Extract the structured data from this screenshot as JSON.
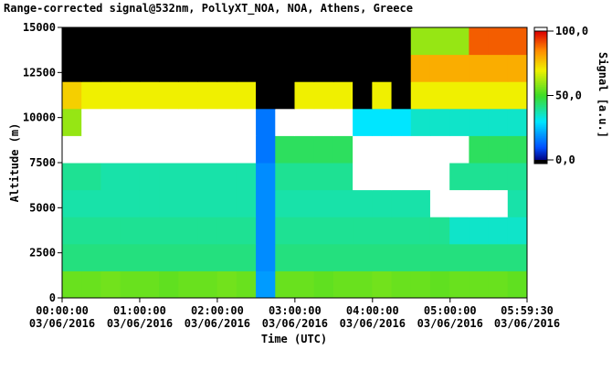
{
  "chart_data": {
    "type": "heatmap",
    "title": "Range-corrected signal@532nm, PollyXT_NOA, NOA, Athens, Greece",
    "x_label": "Time (UTC)",
    "y_label": "Altitude (m)",
    "colorbar_label": "Signal [a.u.]",
    "xlim": [
      0,
      5.99167
    ],
    "ylim": [
      0,
      15000
    ],
    "xticks": [
      {
        "value": 0,
        "label": "00:00:00 03/06/2016"
      },
      {
        "value": 1,
        "label": "01:00:00 03/06/2016"
      },
      {
        "value": 2,
        "label": "02:00:00 03/06/2016"
      },
      {
        "value": 3,
        "label": "03:00:00 03/06/2016"
      },
      {
        "value": 4,
        "label": "04:00:00 03/06/2016"
      },
      {
        "value": 5,
        "label": "05:00:00 03/06/2016"
      },
      {
        "value": 5.99167,
        "label": "05:59:30 03/06/2016"
      }
    ],
    "yticks": [
      0,
      2500,
      5000,
      7500,
      10000,
      12500,
      15000
    ],
    "clim": [
      0,
      100
    ],
    "cticks": [
      {
        "value": 0,
        "label": "0,0"
      },
      {
        "value": 50,
        "label": "50,0"
      },
      {
        "value": 100,
        "label": "100,0"
      }
    ],
    "z": [
      [
        55,
        55,
        56,
        55,
        55,
        54,
        55,
        55,
        56,
        55,
        20,
        55,
        55,
        54,
        55,
        55,
        56,
        55,
        55,
        54,
        55,
        55,
        55,
        54
      ],
      [
        42,
        42,
        42,
        42,
        42,
        42,
        42,
        42,
        42,
        42,
        18,
        42,
        42,
        42,
        42,
        42,
        42,
        42,
        42,
        42,
        42,
        42,
        42,
        42
      ],
      [
        40,
        40,
        40,
        40,
        40,
        40,
        40,
        40,
        40,
        40,
        18,
        40,
        40,
        40,
        40,
        40,
        40,
        40,
        40,
        40,
        35,
        35,
        35,
        35
      ],
      [
        38,
        38,
        38,
        38,
        38,
        38,
        38,
        38,
        38,
        38,
        18,
        38,
        38,
        38,
        38,
        38,
        38,
        38,
        38,
        110,
        110,
        110,
        110,
        38
      ],
      [
        40,
        40,
        38,
        38,
        38,
        38,
        38,
        38,
        38,
        38,
        18,
        40,
        40,
        40,
        40,
        110,
        110,
        110,
        110,
        110,
        40,
        40,
        40,
        40
      ],
      [
        110,
        110,
        110,
        110,
        110,
        110,
        110,
        110,
        110,
        110,
        15,
        45,
        45,
        45,
        45,
        110,
        110,
        110,
        110,
        110,
        110,
        45,
        45,
        45
      ],
      [
        60,
        110,
        110,
        110,
        110,
        110,
        110,
        110,
        110,
        110,
        15,
        110,
        110,
        110,
        110,
        30,
        30,
        30,
        35,
        35,
        35,
        35,
        35,
        35
      ],
      [
        75,
        70,
        70,
        70,
        70,
        70,
        70,
        70,
        70,
        70,
        -5,
        -5,
        70,
        70,
        70,
        -5,
        70,
        -5,
        70,
        70,
        70,
        70,
        70,
        70
      ],
      [
        -5,
        -5,
        -5,
        -5,
        -5,
        -5,
        -5,
        -5,
        -5,
        -5,
        -5,
        -5,
        -5,
        -5,
        -5,
        -5,
        -5,
        -5,
        80,
        80,
        80,
        80,
        80,
        80
      ],
      [
        -5,
        -5,
        -5,
        -5,
        -5,
        -5,
        -5,
        -5,
        -5,
        -5,
        -5,
        -5,
        -5,
        -5,
        -5,
        -5,
        -5,
        -5,
        60,
        60,
        60,
        90,
        90,
        90
      ]
    ]
  }
}
